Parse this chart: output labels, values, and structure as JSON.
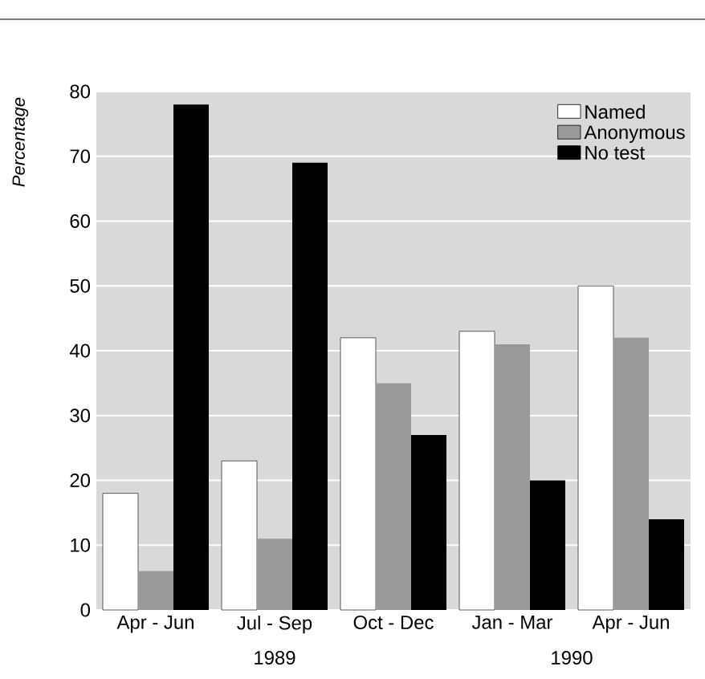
{
  "chart_data": {
    "type": "bar",
    "ylabel": "*Percentage*",
    "categories": [
      "Apr - Jun",
      "Jul - Sep",
      "Oct - Dec",
      "Jan - Mar",
      "Apr - Jun"
    ],
    "series": [
      {
        "name": "Named",
        "color": "#ffffff",
        "values": [
          18,
          23,
          42,
          43,
          50
        ]
      },
      {
        "name": "Anonymous",
        "color": "#999999",
        "values": [
          6,
          11,
          35,
          41,
          42
        ]
      },
      {
        "name": "No test",
        "color": "#000000",
        "values": [
          78,
          69,
          27,
          20,
          14
        ]
      }
    ],
    "annotations": [
      "1989",
      "1990"
    ],
    "ylim": [
      0,
      80
    ],
    "yticks": [
      0,
      10,
      20,
      30,
      40,
      50,
      60,
      70,
      80
    ],
    "grid": "y",
    "legend": "top right"
  }
}
